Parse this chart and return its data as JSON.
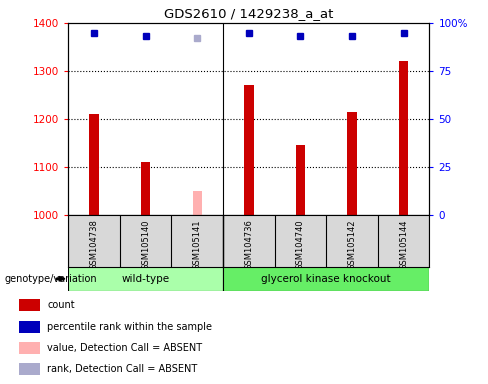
{
  "title": "GDS2610 / 1429238_a_at",
  "samples": [
    "GSM104738",
    "GSM105140",
    "GSM105141",
    "GSM104736",
    "GSM104740",
    "GSM105142",
    "GSM105144"
  ],
  "count_values": [
    1210,
    1110,
    null,
    1270,
    1145,
    1215,
    1320
  ],
  "count_absent": [
    null,
    null,
    1050,
    null,
    null,
    null,
    null
  ],
  "percentile_values": [
    95,
    93,
    null,
    95,
    93,
    93,
    95
  ],
  "percentile_absent": [
    null,
    null,
    92,
    null,
    null,
    null,
    null
  ],
  "ylim_left": [
    1000,
    1400
  ],
  "ylim_right": [
    0,
    100
  ],
  "yticks_left": [
    1000,
    1100,
    1200,
    1300,
    1400
  ],
  "yticks_right": [
    0,
    25,
    50,
    75,
    100
  ],
  "bar_color_red": "#cc0000",
  "bar_color_pink": "#ffb0b0",
  "dot_color_blue": "#0000bb",
  "dot_color_lightblue": "#aaaacc",
  "group1_label": "wild-type",
  "group2_label": "glycerol kinase knockout",
  "group1_indices": [
    0,
    1,
    2
  ],
  "group2_indices": [
    3,
    4,
    5,
    6
  ],
  "genotype_label": "genotype/variation",
  "group1_color": "#aaffaa",
  "group2_color": "#66ee66",
  "legend_items": [
    {
      "label": "count",
      "color": "#cc0000"
    },
    {
      "label": "percentile rank within the sample",
      "color": "#0000bb"
    },
    {
      "label": "value, Detection Call = ABSENT",
      "color": "#ffb0b0"
    },
    {
      "label": "rank, Detection Call = ABSENT",
      "color": "#aaaacc"
    }
  ],
  "background_color": "#ffffff",
  "bar_width": 0.18
}
